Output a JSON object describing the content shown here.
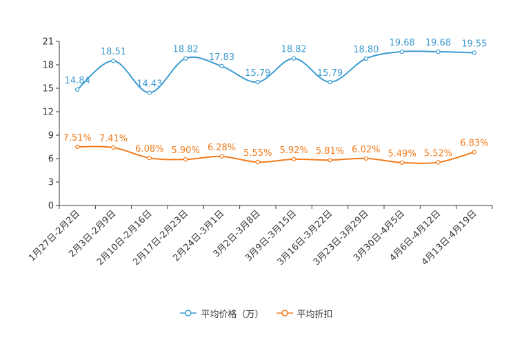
{
  "chart_data": {
    "type": "line",
    "categories": [
      "1月27日-2月2日",
      "2月3日-2月9日",
      "2月10日-2月16日",
      "2月17日-2月23日",
      "2月24日-3月1日",
      "3月2日-3月8日",
      "3月9日-3月15日",
      "3月16日-3月22日",
      "3月23日-3月29日",
      "3月30日-4月5日",
      "4月6日-4月12日",
      "4月13日-4月19日"
    ],
    "series": [
      {
        "name": "平均价格（万）",
        "color": "#3a9bd0",
        "values": [
          14.84,
          18.51,
          14.43,
          18.82,
          17.83,
          15.79,
          18.82,
          15.79,
          18.8,
          19.68,
          19.68,
          19.55
        ],
        "labels": [
          "14.84",
          "18.51",
          "14.43",
          "18.82",
          "17.83",
          "15.79",
          "18.82",
          "15.79",
          "18.80",
          "19.68",
          "19.68",
          "19.55"
        ]
      },
      {
        "name": "平均折扣",
        "color": "#f27a1a",
        "values": [
          7.51,
          7.41,
          6.08,
          5.9,
          6.28,
          5.55,
          5.92,
          5.81,
          6.02,
          5.49,
          5.52,
          6.83
        ],
        "labels": [
          "7.51%",
          "7.41%",
          "6.08%",
          "5.90%",
          "6.28%",
          "5.55%",
          "5.92%",
          "5.81%",
          "6.02%",
          "5.49%",
          "5.52%",
          "6.83%"
        ]
      }
    ],
    "yticks": [
      "0",
      "3",
      "6",
      "9",
      "12",
      "15",
      "18",
      "21"
    ],
    "ylim": [
      0,
      21
    ],
    "legend_position": "bottom-center",
    "grid": false
  }
}
